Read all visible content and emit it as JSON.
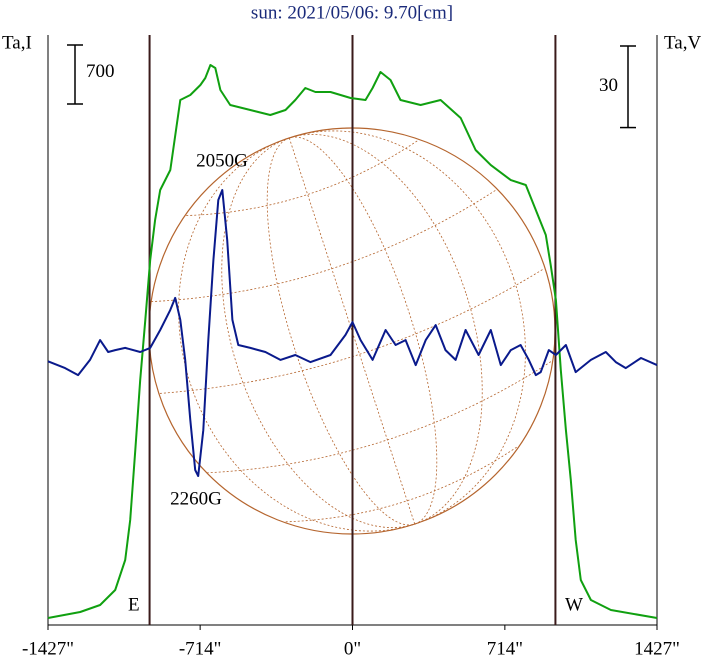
{
  "chart_data": {
    "type": "line",
    "title": "sun: 2021/05/06: 9.70[cm]",
    "ylabel": "Ta,I",
    "y2label": "Ta,V",
    "xlim": [
      -1427,
      1427
    ],
    "xticks": [
      {
        "value": -1427,
        "label": "-1427\""
      },
      {
        "value": -714,
        "label": "-714\""
      },
      {
        "value": 0,
        "label": "0\""
      },
      {
        "value": 714,
        "label": "714\""
      },
      {
        "value": 1427,
        "label": "1427\""
      }
    ],
    "ylim": [
      0,
      7000
    ],
    "y2lim": [
      -100,
      117
    ],
    "scale_i": 700,
    "scale_v": 30,
    "vlines": [
      -951,
      0,
      951
    ],
    "annotations": [
      "2050G",
      "2260G",
      "E",
      "W"
    ],
    "series": [
      {
        "color": "#10a010",
        "x": [
          -1427,
          -1276,
          -1183,
          -1112,
          -1065,
          -1042,
          -1018,
          -995,
          -971,
          -948,
          -925,
          -901,
          -854,
          -807,
          -760,
          -713,
          -690,
          -666,
          -643,
          -619,
          -573,
          -479,
          -385,
          -314,
          -268,
          -221,
          -174,
          -103,
          -9,
          61,
          94,
          131,
          178,
          225,
          319,
          413,
          507,
          577,
          648,
          742,
          812,
          859,
          906,
          929,
          953,
          976,
          1000,
          1023,
          1046,
          1070,
          1117,
          1211,
          1427
        ],
        "values": [
          83,
          154,
          237,
          415,
          771,
          1246,
          2076,
          2907,
          3619,
          4330,
          4805,
          5161,
          5398,
          6229,
          6288,
          6407,
          6490,
          6644,
          6608,
          6347,
          6169,
          6110,
          6051,
          6110,
          6229,
          6371,
          6324,
          6324,
          6253,
          6229,
          6371,
          6561,
          6466,
          6229,
          6169,
          6229,
          6015,
          5635,
          5457,
          5279,
          5220,
          4924,
          4627,
          4271,
          3856,
          3025,
          2313,
          1720,
          1009,
          534,
          297,
          178,
          83
        ]
      },
      {
        "color": "#0a1a8c",
        "axis": "y2",
        "x": [
          -1427,
          -1347,
          -1286,
          -1230,
          -1183,
          -1145,
          -1112,
          -1065,
          -995,
          -948,
          -901,
          -854,
          -831,
          -807,
          -784,
          -760,
          -737,
          -723,
          -699,
          -676,
          -652,
          -629,
          -610,
          -587,
          -563,
          -535,
          -479,
          -408,
          -338,
          -268,
          -197,
          -103,
          -33,
          0,
          38,
          94,
          155,
          202,
          249,
          296,
          343,
          390,
          436,
          483,
          530,
          591,
          648,
          695,
          742,
          788,
          826,
          859,
          882,
          920,
          953,
          1000,
          1046,
          1117,
          1187,
          1234,
          1281,
          1352,
          1427
        ],
        "values": [
          -3,
          -5.5,
          -8.1,
          -2.5,
          4.8,
          0.4,
          1.1,
          1.9,
          0.4,
          1.9,
          8.5,
          15.9,
          20.3,
          12.2,
          -2.5,
          -24.6,
          -43,
          -45.2,
          -28.3,
          4.8,
          34.2,
          56.3,
          60,
          41.6,
          12.2,
          3,
          1.9,
          0.4,
          -2.5,
          -0.7,
          -3.3,
          -0.7,
          6.7,
          11.4,
          4.8,
          -2.5,
          8.5,
          3,
          4.8,
          -4.4,
          4.8,
          10.3,
          1.1,
          -2.5,
          8.5,
          -0.7,
          8.5,
          -4.4,
          1.1,
          3,
          -2.5,
          -8.1,
          -7,
          1.1,
          -0.7,
          3,
          -7,
          -2.5,
          0.4,
          -3.3,
          -5.5,
          -1.8,
          -4.4
        ]
      }
    ]
  }
}
